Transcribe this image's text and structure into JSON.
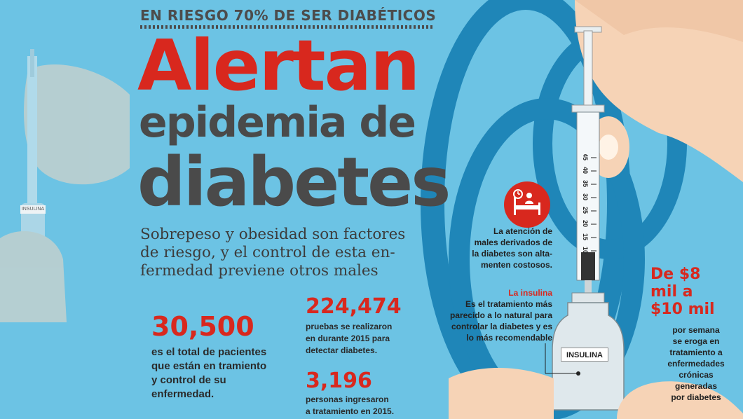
{
  "header": {
    "kicker": "EN RIESGO 70% DE SER DIABÉTICOS",
    "title_line1": "Alertan",
    "title_line2": "epidemia de",
    "title_line3": "diabetes"
  },
  "subtitle": {
    "lines": [
      "Sobrepeso y obesidad son factores",
      "de riesgo, y el control de esta en-",
      "fermedad previene otros males"
    ]
  },
  "stats": {
    "patients": {
      "value": "30,500",
      "lines": [
        "es el total de pacientes",
        "que están en tramiento",
        "y control de su",
        "enfermedad."
      ]
    },
    "tests": {
      "value": "224,474",
      "lines": [
        "pruebas se realizaron",
        "en durante 2015 para",
        "detectar diabetes."
      ]
    },
    "new_patients": {
      "value": "3,196",
      "lines": [
        "personas ingresaron",
        "a tratamiento en 2015."
      ]
    }
  },
  "side_notes": {
    "care_lines": [
      "La atención de",
      "males derivados de",
      "la diabetes son alta-",
      "menten costosos."
    ],
    "insulin_label": "La insulina",
    "insulin_lines": [
      "Es el tratamiento más",
      "parecido a lo natural para",
      "controlar la diabetes y es",
      "lo más recomendable"
    ]
  },
  "cost": {
    "amount_lines": [
      "De $8",
      "mil a",
      "$10 mil"
    ],
    "body_lines": [
      "por semana",
      "se eroga en",
      "tratamiento a",
      "enfermedades",
      "crónicas",
      "generadas",
      "por diabetes"
    ]
  },
  "illustration": {
    "vial_label": "INSULINA",
    "syringe_scale": [
      "45",
      "40",
      "35",
      "30",
      "25",
      "20",
      "15",
      "10"
    ]
  },
  "colors": {
    "background": "#6cc3e4",
    "accent_red": "#d8281e",
    "title_gray": "#4a4a4a",
    "stethoscope_blue": "#1f86b8"
  },
  "icons": [
    "hospital-bed-icon",
    "syringe-illustration",
    "stethoscope-illustration",
    "hand-illustration"
  ]
}
